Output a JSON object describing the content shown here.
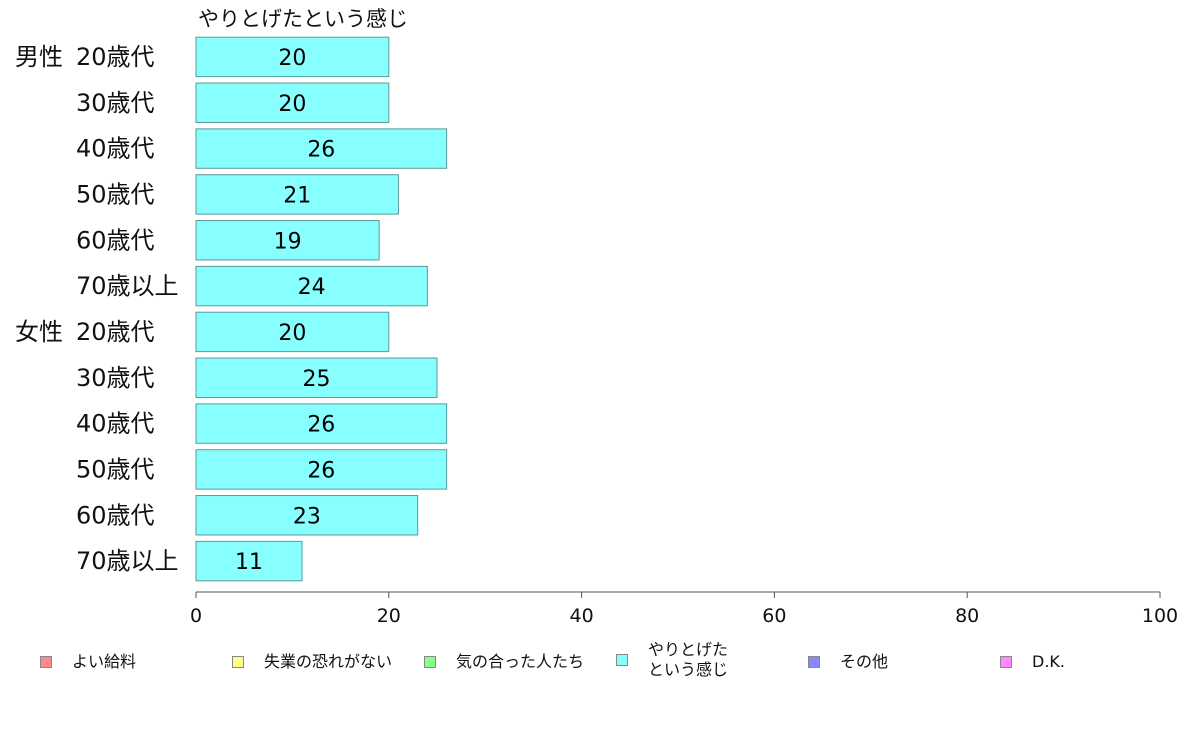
{
  "chart_data": {
    "type": "bar",
    "orientation": "horizontal",
    "title": "やりとげたという感じ",
    "groups": [
      {
        "label": "男性",
        "rows": [
          {
            "label": "20歳代",
            "value": 20
          },
          {
            "label": "30歳代",
            "value": 20
          },
          {
            "label": "40歳代",
            "value": 26
          },
          {
            "label": "50歳代",
            "value": 21
          },
          {
            "label": "60歳代",
            "value": 19
          },
          {
            "label": "70歳以上",
            "value": 24
          }
        ]
      },
      {
        "label": "女性",
        "rows": [
          {
            "label": "20歳代",
            "value": 20
          },
          {
            "label": "30歳代",
            "value": 25
          },
          {
            "label": "40歳代",
            "value": 26
          },
          {
            "label": "50歳代",
            "value": 26
          },
          {
            "label": "60歳代",
            "value": 23
          },
          {
            "label": "70歳以上",
            "value": 11
          }
        ]
      }
    ],
    "bar_color": "#88ffff",
    "xlim": [
      0,
      100
    ],
    "xticks": [
      0,
      20,
      40,
      60,
      80,
      100
    ],
    "grid": false,
    "legend": {
      "placement": "bottom",
      "entries": [
        {
          "label": "よい給料",
          "color": "#ff8888"
        },
        {
          "label": "失業の恐れがない",
          "color": "#ffff88"
        },
        {
          "label": "気の合った人たち",
          "color": "#88ff88"
        },
        {
          "label": "やりとげた\nという感じ",
          "color": "#88ffff"
        },
        {
          "label": "その他",
          "color": "#8888ff"
        },
        {
          "label": "D.K.",
          "color": "#ff88ff"
        }
      ]
    }
  }
}
